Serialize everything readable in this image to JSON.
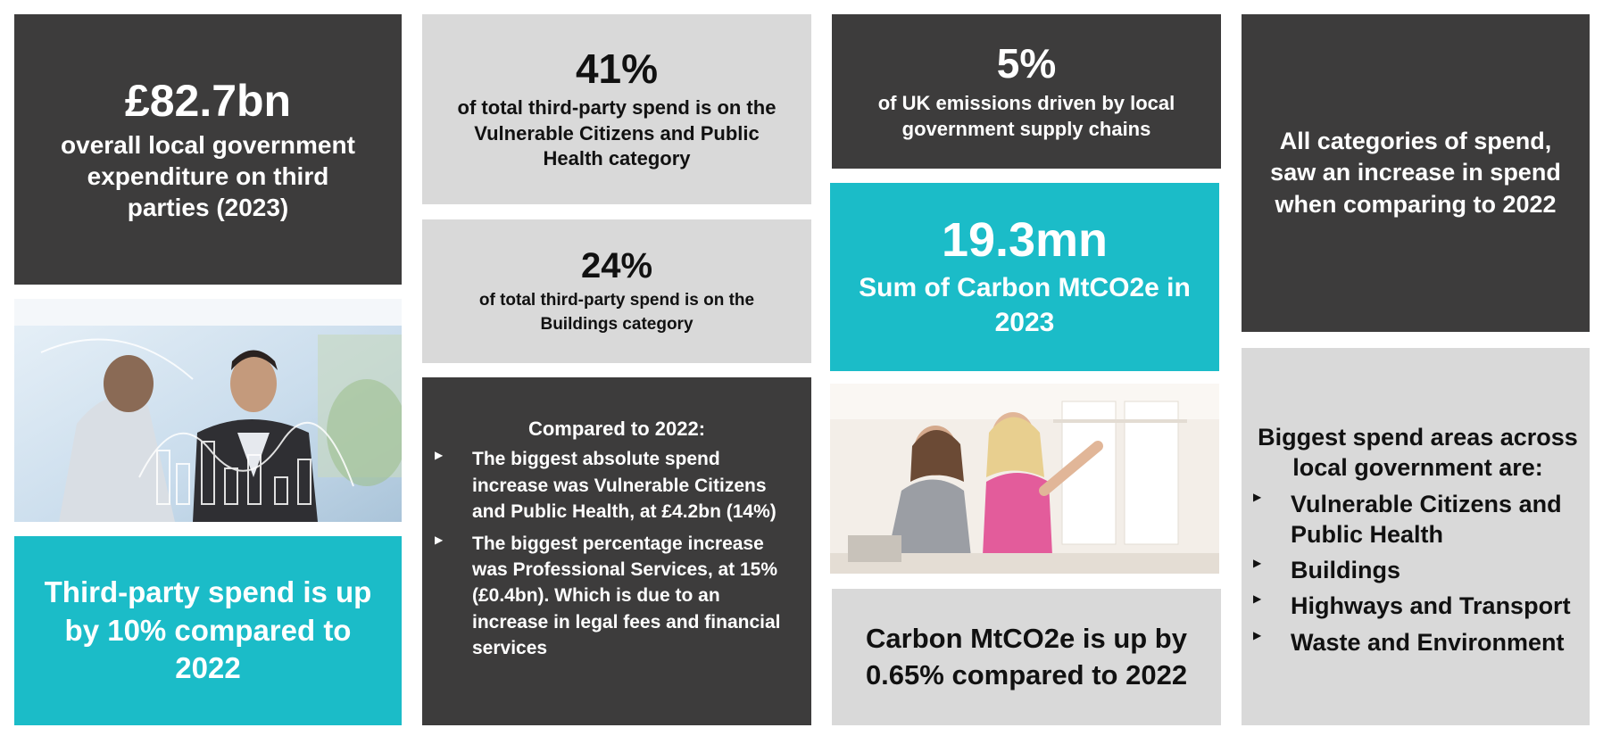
{
  "tiles": {
    "expenditure": {
      "value": "£82.7bn",
      "text": "overall local government expenditure on third parties (2023)"
    },
    "vulnerable_share": {
      "value": "41%",
      "text": "of total third-party spend is on the Vulnerable Citizens and Public Health category"
    },
    "buildings_share": {
      "value": "24%",
      "text": "of total third-party spend is on the Buildings category"
    },
    "uk_emissions": {
      "value": "5%",
      "text": "of UK emissions driven by local government supply chains"
    },
    "carbon_sum": {
      "value": "19.3mn",
      "text": "Sum of Carbon MtCO2e in 2023"
    },
    "all_categories": {
      "text": "All categories of spend, saw an increase in spend when comparing to 2022"
    },
    "third_party_up": {
      "text": "Third-party spend is up by 10% compared to 2022"
    },
    "compared_2022": {
      "heading": "Compared to 2022:",
      "bullets": [
        "The biggest absolute spend increase was Vulnerable Citizens and Public Health, at £4.2bn (14%)",
        "The biggest percentage increase was Professional Services, at 15% (£0.4bn). Which is due to an increase in legal fees and financial services"
      ]
    },
    "carbon_up": {
      "text": "Carbon MtCO2e is up by 0.65% compared to 2022"
    },
    "biggest_areas": {
      "heading": "Biggest spend areas across local government are:",
      "bullets": [
        "Vulnerable Citizens and Public Health",
        "Buildings",
        "Highways and Transport",
        "Waste and Environment"
      ]
    }
  },
  "colors": {
    "dark": "#3d3c3c",
    "light": "#d9d9d9",
    "teal": "#1bbcc8"
  }
}
